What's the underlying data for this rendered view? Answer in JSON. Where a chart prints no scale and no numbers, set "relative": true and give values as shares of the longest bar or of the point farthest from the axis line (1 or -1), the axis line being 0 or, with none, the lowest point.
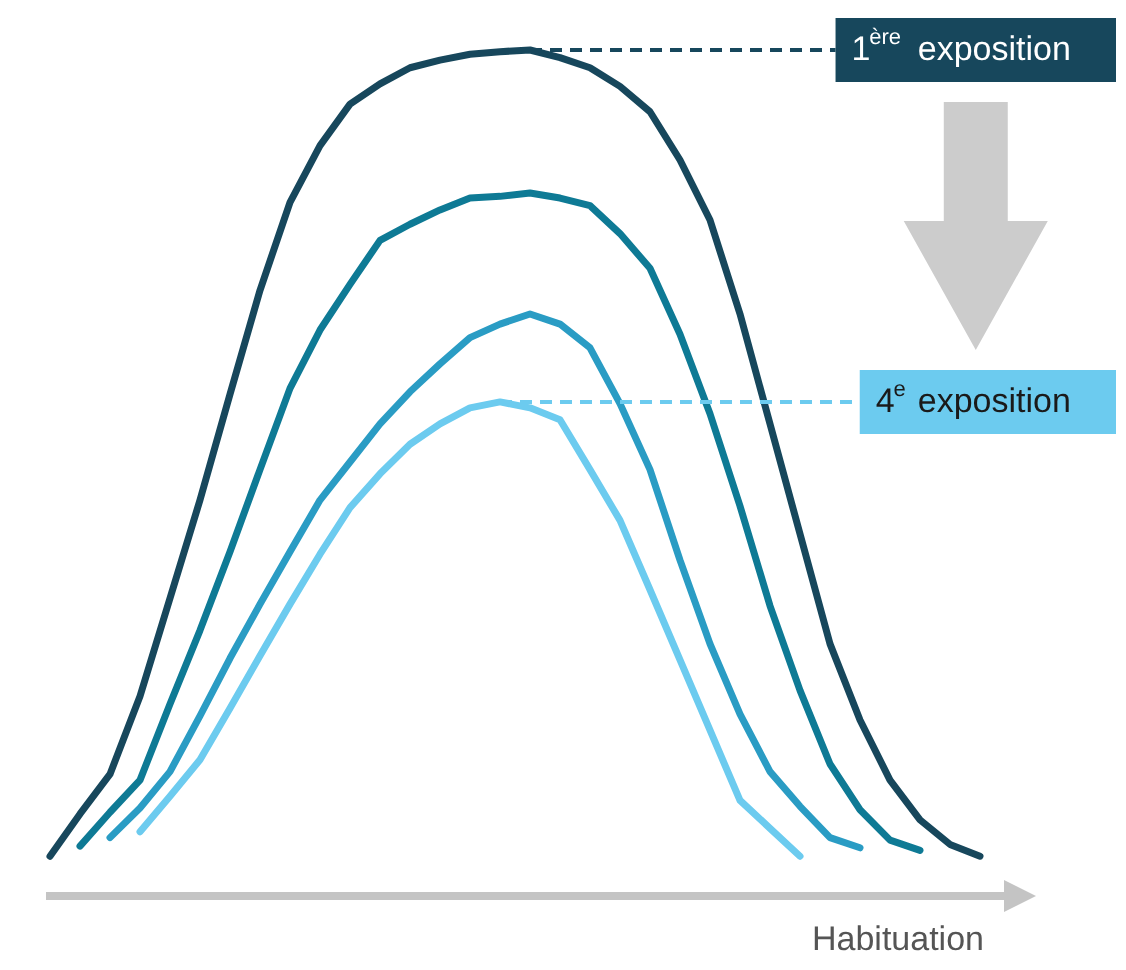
{
  "chart_data": {
    "type": "line",
    "relative": true,
    "xlabel": "Habituation",
    "categories": [
      null,
      null,
      null,
      null,
      null,
      null,
      null,
      null,
      null,
      null,
      null,
      null,
      null,
      null,
      null,
      null,
      null,
      null,
      null,
      null,
      null,
      null,
      null,
      null,
      null,
      null,
      null,
      null,
      null,
      null,
      null,
      null
    ],
    "series": [
      {
        "color": "#17475c",
        "values": [
          0.047,
          0.097,
          0.144,
          0.236,
          0.352,
          0.468,
          0.593,
          0.716,
          0.82,
          0.887,
          0.936,
          0.96,
          0.979,
          0.988,
          0.995,
          0.998,
          1.0,
          0.991,
          0.979,
          0.957,
          0.927,
          0.87,
          0.799,
          0.688,
          0.558,
          0.428,
          0.298,
          0.208,
          0.137,
          0.09,
          0.061,
          0.047
        ]
      },
      {
        "color": "#0e7a95",
        "values": [
          null,
          0.059,
          0.099,
          0.137,
          0.227,
          0.314,
          0.407,
          0.504,
          0.6,
          0.669,
          0.723,
          0.775,
          0.794,
          0.811,
          0.825,
          0.827,
          0.831,
          0.825,
          0.816,
          0.783,
          0.742,
          0.664,
          0.57,
          0.461,
          0.343,
          0.243,
          0.156,
          0.102,
          0.066,
          0.054,
          null,
          null
        ]
      },
      {
        "color": "#2a9cc4",
        "values": [
          null,
          null,
          0.069,
          0.104,
          0.147,
          0.213,
          0.281,
          0.345,
          0.407,
          0.468,
          0.513,
          0.558,
          0.596,
          0.629,
          0.66,
          0.676,
          0.688,
          0.676,
          0.648,
          0.582,
          0.504,
          0.397,
          0.298,
          0.215,
          0.147,
          0.106,
          0.069,
          0.057,
          null,
          null,
          null,
          null
        ]
      },
      {
        "color": "#6ccbef",
        "values": [
          null,
          null,
          null,
          0.076,
          0.118,
          0.161,
          0.222,
          0.284,
          0.345,
          0.404,
          0.459,
          0.499,
          0.534,
          0.558,
          0.577,
          0.584,
          0.577,
          0.563,
          0.504,
          0.444,
          0.362,
          0.279,
          0.196,
          0.113,
          0.08,
          0.047,
          null,
          null,
          null,
          null,
          null,
          null
        ]
      }
    ],
    "annotations": [
      "1$^{ère}$ exposition",
      "4$^{e}$ exposition"
    ]
  }
}
